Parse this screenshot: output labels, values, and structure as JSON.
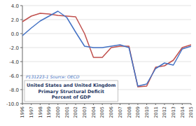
{
  "chart_data": {
    "type": "line",
    "title": "United States and United Kingdom",
    "subtitle": "Primary Structural Deficit",
    "ylabel": "Percent of GDP",
    "annotations": [
      "P131223-1 Source: OECD"
    ],
    "categories": [
      "1996",
      "1997",
      "1998",
      "1999",
      "2000",
      "2001",
      "2002",
      "2003",
      "2004",
      "2005",
      "2006",
      "2007",
      "2008",
      "2009",
      "2010",
      "2011",
      "2012",
      "2013",
      "2014",
      "2015"
    ],
    "series": [
      {
        "color": "#c0504d",
        "values": [
          1.7,
          2.5,
          2.9,
          2.8,
          2.6,
          2.5,
          2.4,
          0.0,
          -3.4,
          -3.4,
          -2.0,
          -1.8,
          -1.8,
          -7.6,
          -7.5,
          -4.8,
          -4.6,
          -3.8,
          -2.0,
          -1.6
        ]
      },
      {
        "color": "#4472c4",
        "values": [
          -0.3,
          0.8,
          1.8,
          2.5,
          3.2,
          2.3,
          0.2,
          -1.8,
          -2.0,
          -2.0,
          -1.8,
          -1.6,
          -2.0,
          -7.5,
          -7.2,
          -5.0,
          -4.2,
          -4.5,
          -2.2,
          -1.8
        ]
      }
    ],
    "ylim": [
      -10.0,
      4.0
    ],
    "yticks": [
      {
        "value": -10.0,
        "label": "-10.0"
      },
      {
        "value": -8.0,
        "label": "-8.0"
      },
      {
        "value": -6.0,
        "label": "-6.0"
      },
      {
        "value": -4.0,
        "label": "-4.0"
      },
      {
        "value": -2.0,
        "label": "-2.0"
      },
      {
        "value": 0.0,
        "label": "0.0"
      },
      {
        "value": 2.0,
        "label": "2.0"
      },
      {
        "value": 4.0,
        "label": "4.0"
      }
    ],
    "grid": true
  }
}
